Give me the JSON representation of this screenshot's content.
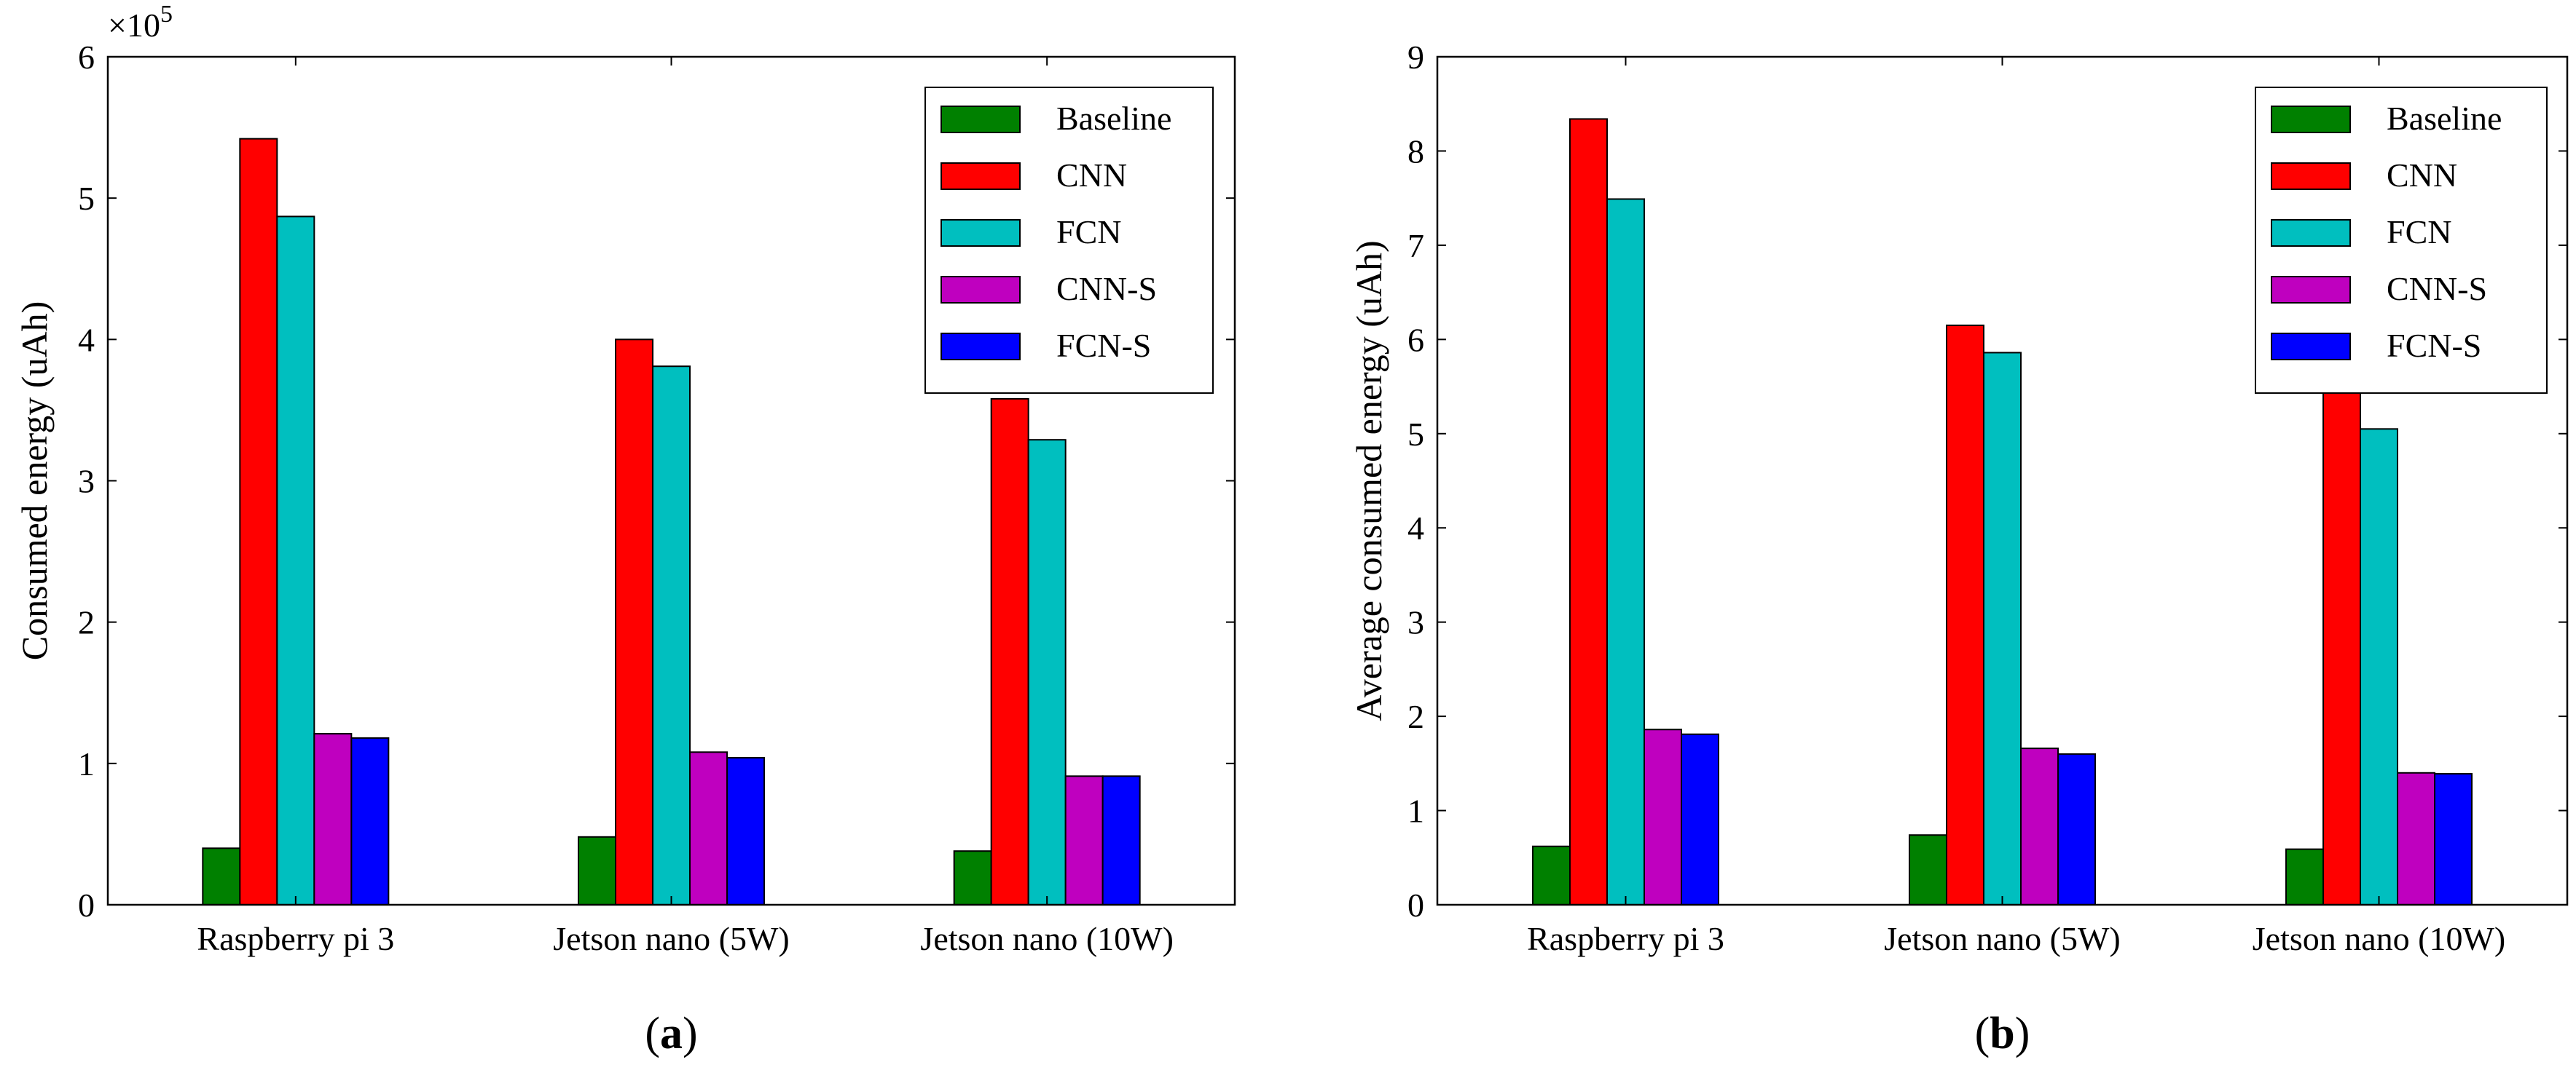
{
  "chart_data": [
    {
      "type": "bar",
      "panel_label": "(a)",
      "categories": [
        "Raspberry pi 3",
        "Jetson nano (5W)",
        "Jetson nano (10W)"
      ],
      "ylabel": "Consumed energy (uAh)",
      "xlabel": "",
      "ylim": [
        0,
        600000
      ],
      "yticks": [
        0,
        100000,
        200000,
        300000,
        400000,
        500000,
        600000
      ],
      "ytick_labels": [
        "0",
        "1",
        "2",
        "3",
        "4",
        "5",
        "6"
      ],
      "y_multiplier_base": "×10",
      "y_multiplier_exp": "5",
      "legend_position": "top-right",
      "grid": false,
      "series": [
        {
          "name": "Baseline",
          "color": "#008000",
          "values": [
            40000,
            48000,
            38000
          ]
        },
        {
          "name": "CNN",
          "color": "#ff0000",
          "values": [
            542000,
            400000,
            358000
          ]
        },
        {
          "name": "FCN",
          "color": "#00bfbf",
          "values": [
            487000,
            381000,
            329000
          ]
        },
        {
          "name": "CNN-S",
          "color": "#bf00bf",
          "values": [
            121000,
            108000,
            91000
          ]
        },
        {
          "name": "FCN-S",
          "color": "#0000ff",
          "values": [
            118000,
            104000,
            91000
          ]
        }
      ]
    },
    {
      "type": "bar",
      "panel_label": "(b)",
      "categories": [
        "Raspberry pi 3",
        "Jetson nano (5W)",
        "Jetson nano (10W)"
      ],
      "ylabel": "Average consumed energy (uAh)",
      "xlabel": "",
      "ylim": [
        0,
        9
      ],
      "yticks": [
        0,
        1,
        2,
        3,
        4,
        5,
        6,
        7,
        8,
        9
      ],
      "ytick_labels": [
        "0",
        "1",
        "2",
        "3",
        "4",
        "5",
        "6",
        "7",
        "8",
        "9"
      ],
      "legend_position": "top-right",
      "grid": false,
      "series": [
        {
          "name": "Baseline",
          "color": "#008000",
          "values": [
            0.62,
            0.74,
            0.59
          ]
        },
        {
          "name": "CNN",
          "color": "#ff0000",
          "values": [
            8.34,
            6.15,
            5.5
          ]
        },
        {
          "name": "FCN",
          "color": "#00bfbf",
          "values": [
            7.49,
            5.86,
            5.05
          ]
        },
        {
          "name": "CNN-S",
          "color": "#bf00bf",
          "values": [
            1.86,
            1.66,
            1.4
          ]
        },
        {
          "name": "FCN-S",
          "color": "#0000ff",
          "values": [
            1.81,
            1.6,
            1.39
          ]
        }
      ]
    }
  ]
}
